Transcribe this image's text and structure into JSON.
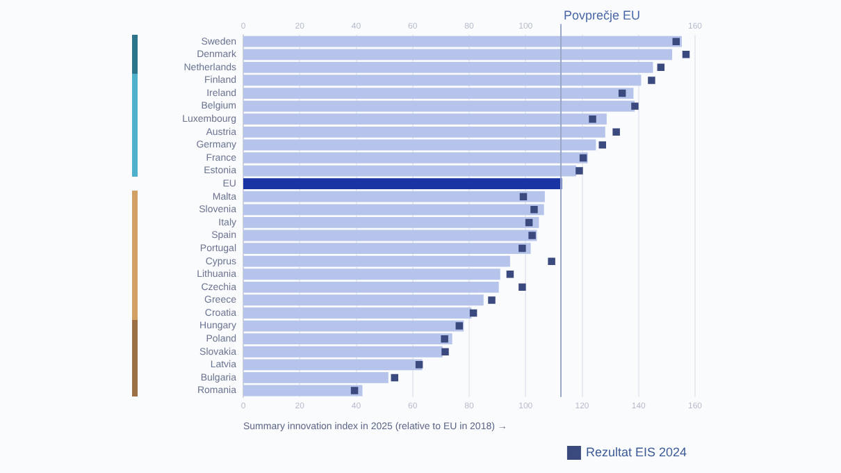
{
  "chart_data": {
    "type": "bar",
    "orientation": "horizontal",
    "xlabel": "Summary innovation index in 2025 (relative to EU in 2018) →",
    "categories": [
      "Sweden",
      "Denmark",
      "Netherlands",
      "Finland",
      "Ireland",
      "Belgium",
      "Luxembourg",
      "Austria",
      "Germany",
      "France",
      "Estonia",
      "EU",
      "Malta",
      "Slovenia",
      "Italy",
      "Spain",
      "Portugal",
      "Cyprus",
      "Lithuania",
      "Czechia",
      "Greece",
      "Croatia",
      "Hungary",
      "Poland",
      "Slovakia",
      "Latvia",
      "Bulgaria",
      "Romania"
    ],
    "series": [
      {
        "colors": [
          "#b6c3ea",
          "#b6c3ea",
          "#b6c3ea",
          "#b6c3ea",
          "#b6c3ea",
          "#b6c3ea",
          "#b6c3ea",
          "#b6c3ea",
          "#b6c3ea",
          "#b6c3ea",
          "#b6c3ea",
          "#1a35a3",
          "#b6c3ea",
          "#b6c3ea",
          "#b6c3ea",
          "#b6c3ea",
          "#b6c3ea",
          "#b6c3ea",
          "#b6c3ea",
          "#b6c3ea",
          "#b6c3ea",
          "#b6c3ea",
          "#b6c3ea",
          "#b6c3ea",
          "#b6c3ea",
          "#b6c3ea",
          "#b6c3ea",
          "#b6c3ea"
        ],
        "values": [
          155.3,
          151.9,
          145.1,
          140.9,
          138.2,
          138.6,
          128.7,
          128.2,
          124.9,
          122.0,
          117.9,
          112.9,
          106.8,
          106.5,
          104.7,
          104.0,
          101.8,
          94.5,
          91.0,
          90.5,
          85.1,
          80.8,
          78.1,
          74.0,
          70.6,
          63.4,
          51.4,
          42.2
        ]
      },
      {
        "type": "scatter",
        "name": "Rezultat EIS 2024",
        "color": "#3b4a7e",
        "marker": "square",
        "x": [
          "Sweden",
          "Denmark",
          "Netherlands",
          "Finland",
          "Ireland",
          "Belgium",
          "Luxembourg",
          "Austria",
          "Germany",
          "France",
          "Estonia",
          "EU",
          "Malta",
          "Slovenia",
          "Italy",
          "Spain",
          "Portugal",
          "Cyprus",
          "Lithuania",
          "Czechia",
          "Greece",
          "Croatia",
          "Hungary",
          "Poland",
          "Slovakia",
          "Latvia",
          "Bulgaria",
          "Romania"
        ],
        "values": [
          153.3,
          156.8,
          147.9,
          144.6,
          134.2,
          138.7,
          123.7,
          132.1,
          127.2,
          120.4,
          119.0,
          null,
          99.2,
          103.0,
          101.2,
          102.3,
          98.8,
          109.2,
          94.5,
          98.8,
          88.0,
          81.5,
          76.5,
          71.3,
          71.5,
          62.3,
          53.6,
          39.4
        ]
      }
    ],
    "xlim": [
      0,
      160
    ],
    "xticks": [
      0,
      20,
      40,
      60,
      80,
      100,
      120,
      140,
      160
    ],
    "x2lim": [
      0,
      160
    ],
    "x2ticks": [
      0,
      20,
      40,
      60,
      80,
      100,
      {
        "value": 120,
        "label": null
      },
      {
        "value": 140,
        "label": null
      },
      160
    ],
    "ref_lines": [
      {
        "axis": "x",
        "value": 112.5,
        "label": "Povprečje EU",
        "color": "#9aa6c8"
      }
    ],
    "grid": "x",
    "legend": "bottom right"
  }
}
